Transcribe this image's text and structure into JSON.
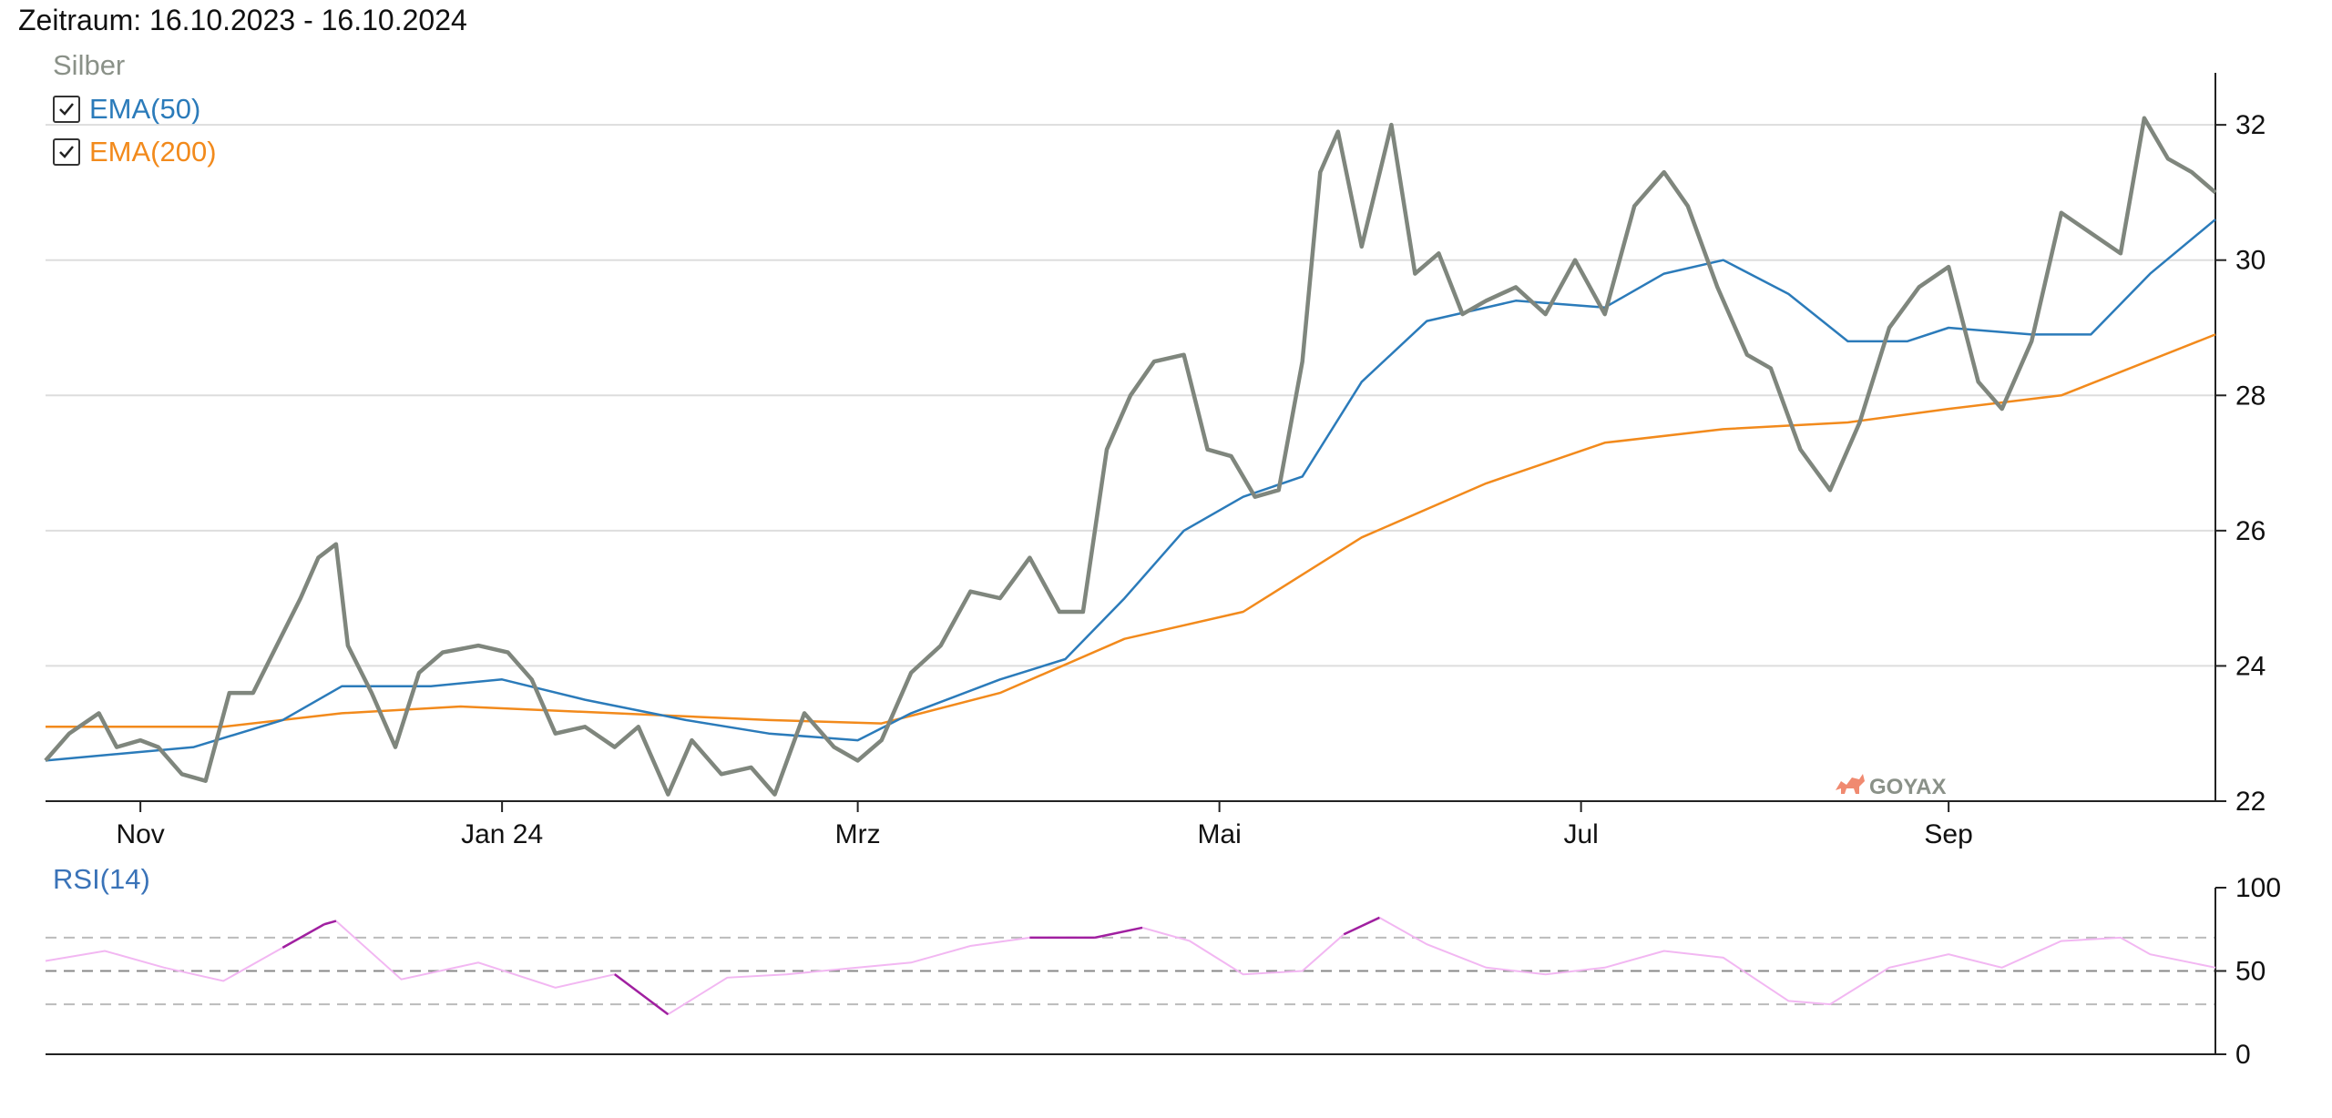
{
  "header": {
    "period": "Zeitraum: 16.10.2023 - 16.10.2024"
  },
  "legend": {
    "series_name": "Silber",
    "items": [
      {
        "label": "EMA(50)",
        "color": "#2b7bba",
        "checked": true
      },
      {
        "label": "EMA(200)",
        "color": "#f28a1c",
        "checked": true
      }
    ]
  },
  "watermark": "GOYAX",
  "rsi_title": "RSI(14)",
  "colors": {
    "price": "#7f867d",
    "ema50": "#2b7bba",
    "ema200": "#f28a1c",
    "rsi": "#f2b7f2",
    "rsi_extreme": "#a020a0",
    "grid": "#dddddd"
  },
  "chart_data": [
    {
      "type": "line",
      "title": "Silber",
      "x_range": [
        "2023-10-16",
        "2024-10-16"
      ],
      "ylim": [
        22,
        32.5
      ],
      "y_ticks": [
        22,
        24,
        26,
        28,
        30,
        32
      ],
      "x_tick_labels": [
        "Nov",
        "Jan 24",
        "Mrz",
        "Mai",
        "Jul",
        "Sep"
      ],
      "grid": true,
      "y_axis_position": "right",
      "series": [
        {
          "name": "Silber",
          "x": [
            "2023-10-16",
            "2023-10-20",
            "2023-10-25",
            "2023-10-28",
            "2023-11-01",
            "2023-11-04",
            "2023-11-08",
            "2023-11-12",
            "2023-11-16",
            "2023-11-20",
            "2023-11-24",
            "2023-11-28",
            "2023-12-01",
            "2023-12-04",
            "2023-12-06",
            "2023-12-10",
            "2023-12-14",
            "2023-12-18",
            "2023-12-22",
            "2023-12-28",
            "2024-01-02",
            "2024-01-06",
            "2024-01-10",
            "2024-01-15",
            "2024-01-20",
            "2024-01-24",
            "2024-01-29",
            "2024-02-02",
            "2024-02-07",
            "2024-02-12",
            "2024-02-16",
            "2024-02-21",
            "2024-02-26",
            "2024-03-01",
            "2024-03-05",
            "2024-03-10",
            "2024-03-15",
            "2024-03-20",
            "2024-03-25",
            "2024-03-30",
            "2024-04-04",
            "2024-04-08",
            "2024-04-12",
            "2024-04-16",
            "2024-04-20",
            "2024-04-25",
            "2024-04-29",
            "2024-05-03",
            "2024-05-07",
            "2024-05-11",
            "2024-05-15",
            "2024-05-18",
            "2024-05-21",
            "2024-05-25",
            "2024-05-30",
            "2024-06-03",
            "2024-06-07",
            "2024-06-11",
            "2024-06-15",
            "2024-06-20",
            "2024-06-25",
            "2024-06-30",
            "2024-07-05",
            "2024-07-10",
            "2024-07-15",
            "2024-07-19",
            "2024-07-24",
            "2024-07-29",
            "2024-08-02",
            "2024-08-07",
            "2024-08-12",
            "2024-08-17",
            "2024-08-22",
            "2024-08-27",
            "2024-09-01",
            "2024-09-06",
            "2024-09-10",
            "2024-09-15",
            "2024-09-20",
            "2024-09-25",
            "2024-09-30",
            "2024-10-04",
            "2024-10-08",
            "2024-10-12",
            "2024-10-16"
          ],
          "values": [
            22.6,
            23.0,
            23.3,
            22.8,
            22.9,
            22.8,
            22.4,
            22.3,
            23.6,
            23.6,
            24.3,
            25.0,
            25.6,
            25.8,
            24.3,
            23.6,
            22.8,
            23.9,
            24.2,
            24.3,
            24.2,
            23.8,
            23.0,
            23.1,
            22.8,
            23.1,
            22.1,
            22.9,
            22.4,
            22.5,
            22.1,
            23.3,
            22.8,
            22.6,
            22.9,
            23.9,
            24.3,
            25.1,
            25.0,
            25.6,
            24.8,
            24.8,
            27.2,
            28.0,
            28.5,
            28.6,
            27.2,
            27.1,
            26.5,
            26.6,
            28.5,
            31.3,
            31.9,
            30.2,
            32.0,
            29.8,
            30.1,
            29.2,
            29.4,
            29.6,
            29.2,
            30.0,
            29.2,
            30.8,
            31.3,
            30.8,
            29.6,
            28.6,
            28.4,
            27.2,
            26.6,
            27.6,
            29.0,
            29.6,
            29.9,
            28.2,
            27.8,
            28.8,
            30.7,
            30.4,
            30.1,
            32.1,
            31.5,
            31.3,
            31.0
          ]
        },
        {
          "name": "EMA(50)",
          "x": [
            "2023-10-16",
            "2023-11-10",
            "2023-11-25",
            "2023-12-05",
            "2023-12-20",
            "2024-01-01",
            "2024-01-15",
            "2024-02-01",
            "2024-02-15",
            "2024-03-01",
            "2024-03-10",
            "2024-03-25",
            "2024-04-05",
            "2024-04-15",
            "2024-04-25",
            "2024-05-05",
            "2024-05-15",
            "2024-05-25",
            "2024-06-05",
            "2024-06-20",
            "2024-07-05",
            "2024-07-15",
            "2024-07-25",
            "2024-08-05",
            "2024-08-15",
            "2024-08-25",
            "2024-09-01",
            "2024-09-15",
            "2024-09-25",
            "2024-10-05",
            "2024-10-16"
          ],
          "values": [
            22.6,
            22.8,
            23.2,
            23.7,
            23.7,
            23.8,
            23.5,
            23.2,
            23.0,
            22.9,
            23.3,
            23.8,
            24.1,
            25.0,
            26.0,
            26.5,
            26.8,
            28.2,
            29.1,
            29.4,
            29.3,
            29.8,
            30.0,
            29.5,
            28.8,
            28.8,
            29.0,
            28.9,
            28.9,
            29.8,
            30.6
          ]
        },
        {
          "name": "EMA(200)",
          "x": [
            "2023-10-16",
            "2023-11-15",
            "2023-12-05",
            "2023-12-25",
            "2024-01-20",
            "2024-02-15",
            "2024-03-05",
            "2024-03-25",
            "2024-04-15",
            "2024-05-05",
            "2024-05-25",
            "2024-06-15",
            "2024-07-05",
            "2024-07-25",
            "2024-08-15",
            "2024-09-01",
            "2024-09-20",
            "2024-10-16"
          ],
          "values": [
            23.1,
            23.1,
            23.3,
            23.4,
            23.3,
            23.2,
            23.15,
            23.6,
            24.4,
            24.8,
            25.9,
            26.7,
            27.3,
            27.5,
            27.6,
            27.8,
            28.0,
            28.9
          ]
        }
      ]
    },
    {
      "type": "line",
      "title": "RSI(14)",
      "ylim": [
        0,
        100
      ],
      "y_ticks": [
        0,
        50,
        100
      ],
      "reference_lines": [
        30,
        50,
        70
      ],
      "series": [
        {
          "name": "RSI(14)",
          "x": [
            "2023-10-16",
            "2023-10-26",
            "2023-11-05",
            "2023-11-15",
            "2023-11-25",
            "2023-12-02",
            "2023-12-04",
            "2023-12-15",
            "2023-12-28",
            "2024-01-10",
            "2024-01-20",
            "2024-01-29",
            "2024-02-08",
            "2024-02-18",
            "2024-03-01",
            "2024-03-10",
            "2024-03-20",
            "2024-03-30",
            "2024-04-10",
            "2024-04-18",
            "2024-04-26",
            "2024-05-05",
            "2024-05-15",
            "2024-05-22",
            "2024-05-28",
            "2024-06-05",
            "2024-06-15",
            "2024-06-25",
            "2024-07-05",
            "2024-07-15",
            "2024-07-25",
            "2024-08-05",
            "2024-08-12",
            "2024-08-22",
            "2024-09-01",
            "2024-09-10",
            "2024-09-20",
            "2024-09-30",
            "2024-10-05",
            "2024-10-16"
          ],
          "values": [
            56,
            62,
            52,
            44,
            64,
            78,
            80,
            45,
            55,
            40,
            48,
            24,
            46,
            48,
            52,
            55,
            65,
            70,
            70,
            76,
            68,
            48,
            50,
            72,
            82,
            66,
            52,
            48,
            52,
            62,
            58,
            32,
            30,
            52,
            60,
            52,
            68,
            70,
            60,
            52
          ]
        }
      ]
    }
  ]
}
